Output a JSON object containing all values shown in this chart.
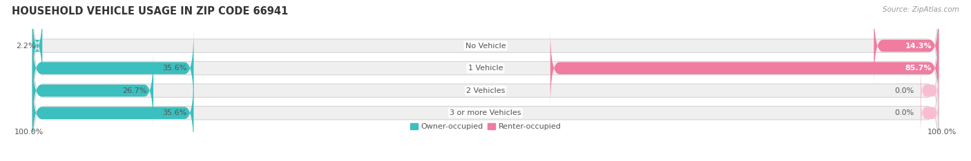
{
  "title": "HOUSEHOLD VEHICLE USAGE IN ZIP CODE 66941",
  "source": "Source: ZipAtlas.com",
  "categories": [
    "No Vehicle",
    "1 Vehicle",
    "2 Vehicles",
    "3 or more Vehicles"
  ],
  "owner_values": [
    2.2,
    35.6,
    26.7,
    35.6
  ],
  "renter_values": [
    14.3,
    85.7,
    0.0,
    0.0
  ],
  "owner_color": "#3bbfbf",
  "renter_color": "#f07ca0",
  "renter_color_light": "#f9bdd0",
  "bar_bg_color": "#efefef",
  "bar_border_color": "#d0d0d0",
  "max_value": 100.0,
  "legend_owner": "Owner-occupied",
  "legend_renter": "Renter-occupied",
  "axis_label_left": "100.0%",
  "axis_label_right": "100.0%",
  "title_fontsize": 10.5,
  "source_fontsize": 7.5,
  "label_fontsize": 8,
  "value_label_color": "#555555",
  "cat_label_color": "#555555",
  "bar_height": 0.6,
  "figsize": [
    14.06,
    2.34
  ],
  "dpi": 100,
  "xlim_left": -105,
  "xlim_right": 105,
  "small_renter_stub": 4.0,
  "renter_label_inside_threshold": 10.0
}
